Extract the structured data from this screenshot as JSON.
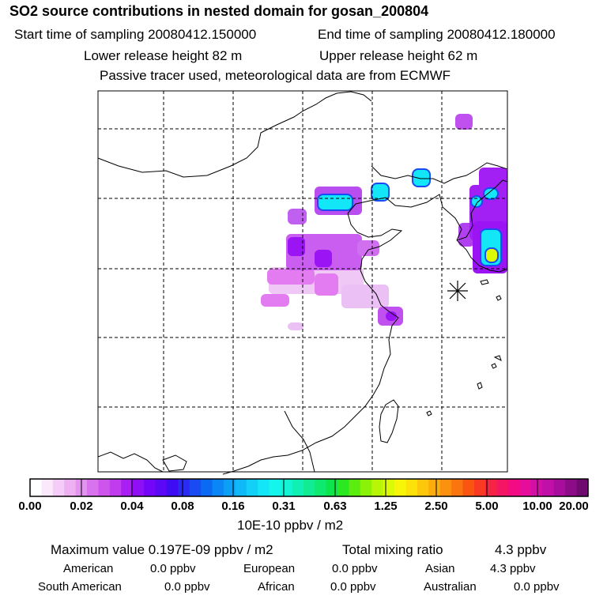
{
  "header": {
    "title": "SO2 source contributions in nested domain for gosan_200804",
    "start": "Start time of sampling 20080412.150000",
    "end": "End time of sampling 20080412.180000",
    "lower": "Lower release height   82 m",
    "upper": "Upper release height   62 m",
    "note": "Passive tracer used, meteorological data are from ECMWF"
  },
  "colorbar": {
    "ticks": [
      "0.00",
      "0.02",
      "0.04",
      "0.08",
      "0.16",
      "0.31",
      "0.63",
      "1.25",
      "2.50",
      "5.00",
      "10.00",
      "20.00"
    ],
    "unit": "10E-10 ppbv / m2",
    "colors": [
      "#ffffff",
      "#fbe8fb",
      "#f5ccf7",
      "#eeb0f3",
      "#e394ef",
      "#d873ed",
      "#cd55ec",
      "#c13cef",
      "#a91ff3",
      "#8f10f5",
      "#7306f7",
      "#5a08f6",
      "#3d0cf3",
      "#2a2af2",
      "#1a4af2",
      "#0b6af4",
      "#0a86f5",
      "#0c9ff6",
      "#0fb8f7",
      "#12d0f8",
      "#13e6f7",
      "#14f6ec",
      "#12f4d3",
      "#10f0b4",
      "#0fec93",
      "#0ee96f",
      "#0de64a",
      "#2ce820",
      "#5ced10",
      "#8af208",
      "#b7f606",
      "#dcf906",
      "#f8f509",
      "#fde20a",
      "#fdc80b",
      "#fcac0c",
      "#fb910e",
      "#fa740f",
      "#f95511",
      "#f83a22",
      "#f62444",
      "#f41564",
      "#f20b82",
      "#e60d9a",
      "#d40fa8",
      "#c010a8",
      "#a80e9c",
      "#8c0c88",
      "#700a70"
    ]
  },
  "summary": {
    "max": "Maximum value  0.197E-09 ppbv / m2",
    "total_label": "Total mixing ratio",
    "total_value": "4.3 ppbv",
    "american": "American",
    "american_val": "0.0 ppbv",
    "european": "European",
    "european_val": "0.0 ppbv",
    "asian": "Asian",
    "asian_val": "4.3 ppbv",
    "south_american": "South American",
    "south_american_val": "0.0 ppbv",
    "african": "African",
    "african_val": "0.0 ppbv",
    "australian": "Australian",
    "australian_val": "0.0 ppbv"
  },
  "map": {
    "grid": "on",
    "receptor_marker": "asterisk",
    "colors": {
      "border": "#000000",
      "coast": "#000000",
      "plume_low": "#e27cf0",
      "plume_mid": "#9a14f4",
      "plume_high": "#13e6f7",
      "plume_peak": "#dcf906"
    }
  }
}
